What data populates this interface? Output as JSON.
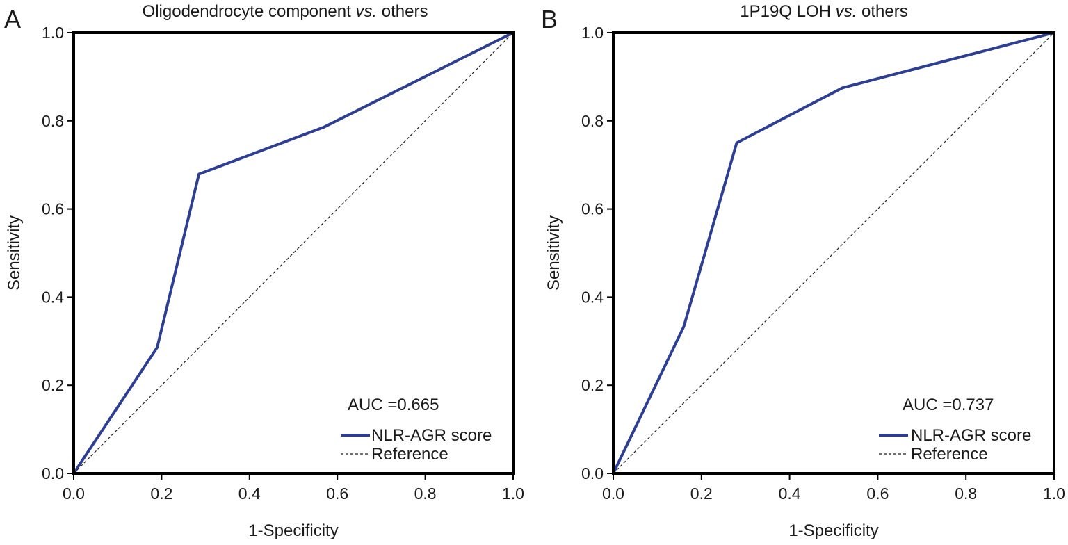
{
  "figure": {
    "panels": [
      {
        "letter": "A",
        "title_plain": "Oligodendrocyte component ",
        "title_italic": "vs.",
        "title_rest": " others",
        "auc_text": "AUC =0.665",
        "legend_curve": "NLR-AGR score",
        "legend_reference": "Reference"
      },
      {
        "letter": "B",
        "title_plain": "1P19Q LOH ",
        "title_italic": "vs.",
        "title_rest": " others",
        "auc_text": "AUC =0.737",
        "legend_curve": "NLR-AGR score",
        "legend_reference": "Reference"
      }
    ],
    "colors": {
      "curve": "#2e3f93",
      "reference": "#1a1a1a",
      "frame": "#000000"
    }
  },
  "chart_data": [
    {
      "type": "line",
      "title": "Oligodendrocyte component vs. others",
      "xlabel": "1-Specificity",
      "ylabel": "Sensitivity",
      "xlim": [
        0,
        1
      ],
      "ylim": [
        0,
        1
      ],
      "x_ticks": [
        "0.0",
        "0.2",
        "0.4",
        "0.6",
        "0.8",
        "1.0"
      ],
      "y_ticks": [
        "0.0",
        "0.2",
        "0.4",
        "0.6",
        "0.8",
        "1.0"
      ],
      "grid": false,
      "legend_position": "bottom-right",
      "series": [
        {
          "name": "NLR-AGR score",
          "style": "solid",
          "x": [
            0.0,
            0.19,
            0.285,
            0.57,
            1.0
          ],
          "y": [
            0.0,
            0.286,
            0.679,
            0.786,
            1.0
          ]
        },
        {
          "name": "Reference",
          "style": "dashed",
          "x": [
            0.0,
            1.0
          ],
          "y": [
            0.0,
            1.0
          ]
        }
      ],
      "annotations": [
        "AUC =0.665"
      ]
    },
    {
      "type": "line",
      "title": "1P19Q LOH vs. others",
      "xlabel": "1-Specificity",
      "ylabel": "Sensitivity",
      "xlim": [
        0,
        1
      ],
      "ylim": [
        0,
        1
      ],
      "x_ticks": [
        "0.0",
        "0.2",
        "0.4",
        "0.6",
        "0.8",
        "1.0"
      ],
      "y_ticks": [
        "0.0",
        "0.2",
        "0.4",
        "0.6",
        "0.8",
        "1.0"
      ],
      "grid": false,
      "legend_position": "bottom-right",
      "series": [
        {
          "name": "NLR-AGR score",
          "style": "solid",
          "x": [
            0.0,
            0.16,
            0.28,
            0.52,
            1.0
          ],
          "y": [
            0.0,
            0.333,
            0.75,
            0.875,
            1.0
          ]
        },
        {
          "name": "Reference",
          "style": "dashed",
          "x": [
            0.0,
            1.0
          ],
          "y": [
            0.0,
            1.0
          ]
        }
      ],
      "annotations": [
        "AUC =0.737"
      ]
    }
  ]
}
